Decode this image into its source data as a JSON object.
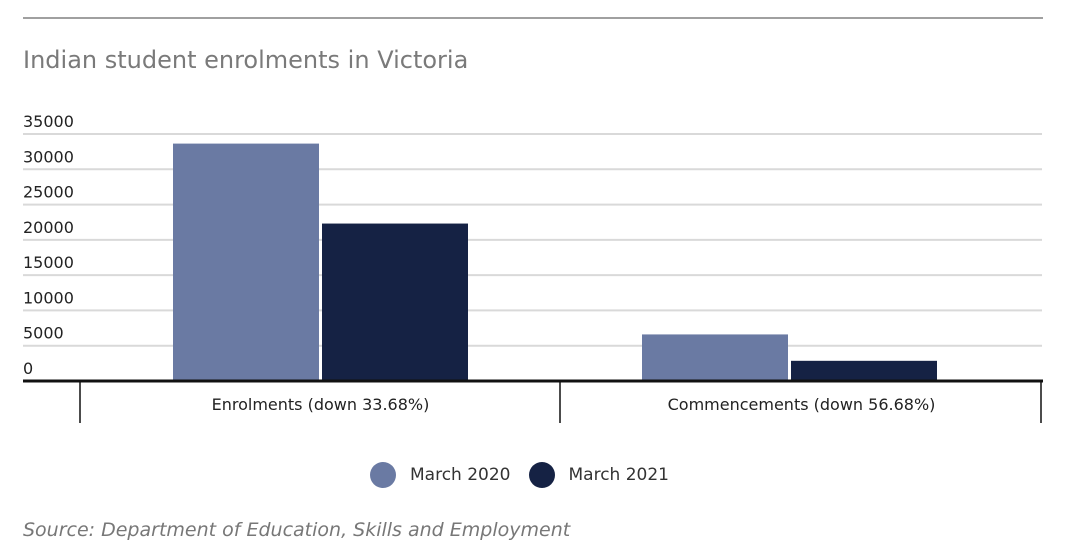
{
  "chart_data": {
    "type": "bar",
    "title": "Indian student enrolments in Victoria",
    "categories": [
      "Enrolments (down 33.68%)",
      "Commencements (down 56.68%)"
    ],
    "series": [
      {
        "name": "March 2020",
        "color": "#6a7aa3",
        "values": [
          33640,
          6600
        ]
      },
      {
        "name": "March 2021",
        "color": "#152244",
        "values": [
          22310,
          2860
        ]
      }
    ],
    "ylim": [
      0,
      35000
    ],
    "yticks": [
      "0",
      "5000",
      "10000",
      "15000",
      "20000",
      "25000",
      "30000",
      "35000"
    ],
    "grid": true,
    "legend": "bottom",
    "source": "Source: Department of Education, Skills and Employment"
  }
}
